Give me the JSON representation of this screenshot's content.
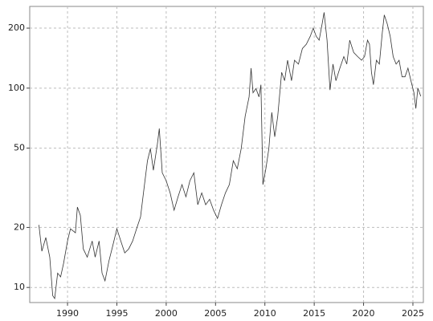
{
  "chart_data": {
    "type": "line",
    "log_y": true,
    "grid": true,
    "color": "#333333",
    "xlim": [
      1986.17,
      2026.06
    ],
    "ylim": [
      8.4,
      257
    ],
    "xticks": [
      1990,
      1995,
      2000,
      2005,
      2010,
      2015,
      2020,
      2025
    ],
    "yticks": [
      10,
      20,
      50,
      100,
      200
    ],
    "x": [
      1987.1,
      1987.4,
      1987.8,
      1988.2,
      1988.5,
      1988.7,
      1989.0,
      1989.3,
      1989.6,
      1990.0,
      1990.3,
      1990.8,
      1991.0,
      1991.3,
      1991.6,
      1992.0,
      1992.5,
      1992.8,
      1993.2,
      1993.5,
      1993.8,
      1994.2,
      1994.6,
      1995.0,
      1995.4,
      1995.8,
      1996.2,
      1996.6,
      1997.0,
      1997.4,
      1997.8,
      1998.1,
      1998.4,
      1998.7,
      1999.1,
      1999.3,
      1999.6,
      2000.0,
      2000.4,
      2000.8,
      2001.2,
      2001.6,
      2002.0,
      2002.4,
      2002.8,
      2003.2,
      2003.6,
      2004.0,
      2004.4,
      2004.8,
      2005.2,
      2005.6,
      2006.0,
      2006.4,
      2006.8,
      2007.2,
      2007.6,
      2008.0,
      2008.4,
      2008.6,
      2008.8,
      2009.1,
      2009.4,
      2009.6,
      2009.8,
      2010.1,
      2010.4,
      2010.7,
      2011.0,
      2011.3,
      2011.7,
      2012.0,
      2012.3,
      2012.7,
      2013.0,
      2013.4,
      2013.8,
      2014.2,
      2014.6,
      2014.9,
      2015.2,
      2015.5,
      2015.8,
      2016.0,
      2016.3,
      2016.6,
      2016.9,
      2017.2,
      2017.6,
      2018.0,
      2018.3,
      2018.6,
      2019.0,
      2019.4,
      2019.8,
      2020.1,
      2020.4,
      2020.6,
      2020.8,
      2021.0,
      2021.3,
      2021.6,
      2021.9,
      2022.1,
      2022.4,
      2022.7,
      2023.0,
      2023.3,
      2023.6,
      2023.9,
      2024.2,
      2024.5,
      2024.8,
      2025.1,
      2025.3,
      2025.5,
      2025.8
    ],
    "values": [
      20.6,
      15.2,
      17.8,
      14.2,
      9.1,
      8.8,
      11.8,
      11.3,
      13.2,
      17.1,
      19.7,
      18.8,
      25.3,
      23.0,
      15.6,
      14.2,
      17.1,
      14.2,
      17.1,
      11.8,
      10.8,
      13.6,
      16.3,
      19.7,
      17.1,
      14.9,
      15.6,
      17.1,
      19.7,
      22.6,
      32.8,
      43.2,
      49.7,
      38.7,
      52.1,
      62.7,
      37.6,
      34.3,
      29.8,
      24.4,
      28.5,
      32.8,
      28.5,
      34.3,
      37.6,
      26.0,
      29.8,
      26.0,
      27.7,
      24.4,
      22.2,
      26.0,
      29.8,
      32.8,
      43.2,
      39.4,
      49.7,
      72.1,
      90.4,
      126,
      94.8,
      99.5,
      90.4,
      104,
      32.8,
      39.4,
      49.7,
      75.6,
      57,
      72.1,
      120,
      109,
      138,
      109,
      138,
      132,
      158,
      166,
      182,
      200,
      182,
      174,
      210,
      240,
      174,
      97.8,
      132,
      109,
      126,
      144,
      132,
      174,
      151,
      144,
      138,
      144,
      174,
      166,
      120,
      104,
      138,
      132,
      190,
      233,
      210,
      182,
      144,
      132,
      138,
      114,
      114,
      126,
      109,
      95,
      79,
      100,
      91
    ]
  }
}
